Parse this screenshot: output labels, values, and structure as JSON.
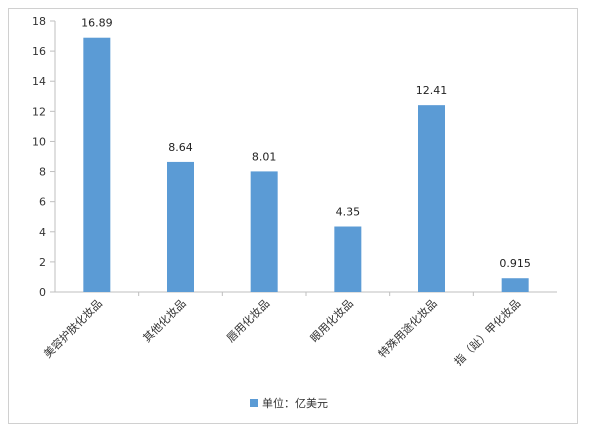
{
  "chart_data": {
    "type": "bar",
    "categories": [
      "美容护肤化妆品",
      "其他化妆品",
      "唇用化妆品",
      "眼用化妆品",
      "特殊用途化妆品",
      "指（趾）甲化妆品"
    ],
    "series": [
      {
        "name": "单位：亿美元",
        "values": [
          16.89,
          8.64,
          8.01,
          4.35,
          12.41,
          0.915
        ],
        "color": "#5b9bd5"
      }
    ],
    "value_labels": [
      "16.89",
      "8.64",
      "8.01",
      "4.35",
      "12.41",
      "0.915"
    ],
    "ylim": [
      0,
      18
    ],
    "yticks": [
      0,
      2,
      4,
      6,
      8,
      10,
      12,
      14,
      16,
      18
    ],
    "grid": false,
    "legend_position": "bottom",
    "legend": {
      "label": "单位：亿美元"
    }
  }
}
